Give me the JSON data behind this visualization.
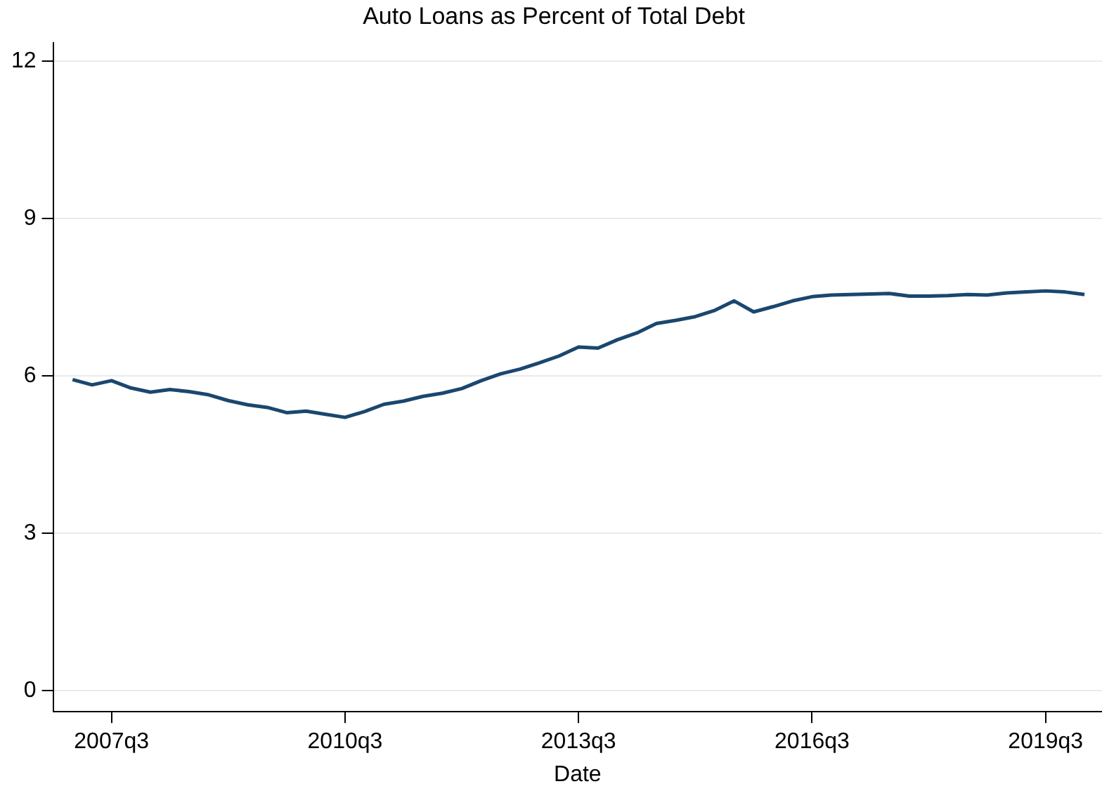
{
  "chart_data": {
    "type": "line",
    "title": "Auto Loans as Percent of Total Debt",
    "xlabel": "Date",
    "categories": [
      null,
      null,
      "2007q3",
      null,
      null,
      null,
      null,
      null,
      null,
      null,
      null,
      null,
      null,
      null,
      "2010q3",
      null,
      null,
      null,
      null,
      null,
      null,
      null,
      null,
      null,
      null,
      null,
      "2013q3",
      null,
      null,
      null,
      null,
      null,
      null,
      null,
      null,
      null,
      null,
      null,
      "2016q3",
      null,
      null,
      null,
      null,
      null,
      null,
      null,
      null,
      null,
      null,
      null,
      "2019q3",
      null,
      null
    ],
    "series": [
      {
        "color": "#1a476f",
        "values": [
          5.93,
          5.83,
          5.91,
          5.77,
          5.69,
          5.74,
          5.7,
          5.64,
          5.53,
          5.45,
          5.4,
          5.3,
          5.33,
          5.27,
          5.21,
          5.32,
          5.46,
          5.52,
          5.61,
          5.67,
          5.76,
          5.91,
          6.04,
          6.13,
          6.25,
          6.38,
          6.55,
          6.53,
          6.69,
          6.82,
          7.0,
          7.06,
          7.13,
          7.25,
          7.43,
          7.22,
          7.32,
          7.43,
          7.51,
          7.54,
          7.55,
          7.56,
          7.57,
          7.52,
          7.52,
          7.53,
          7.55,
          7.54,
          7.58,
          7.6,
          7.62,
          7.6,
          7.55
        ]
      }
    ],
    "ylim": [
      -0.4,
      12.35
    ],
    "yticks": [
      0,
      3,
      6,
      9,
      12
    ],
    "grid": "y",
    "legend": false,
    "marker": "none",
    "line_style": "solid"
  }
}
